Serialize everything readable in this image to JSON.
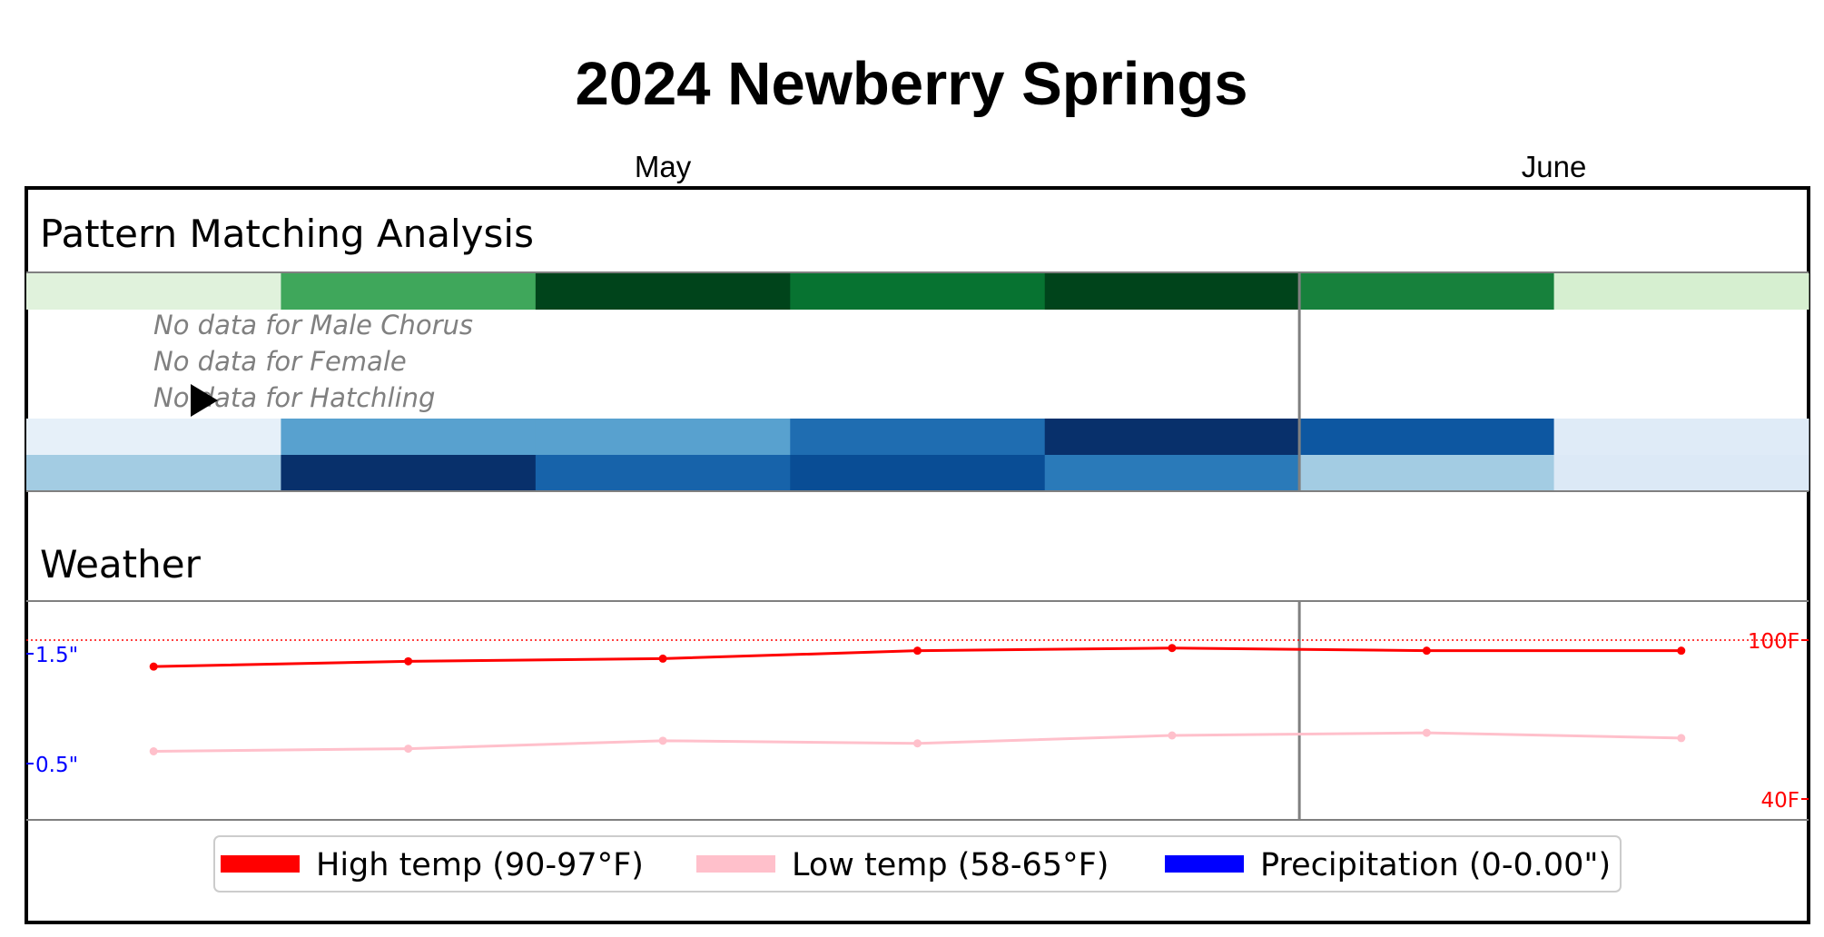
{
  "title": "2024 Newberry Springs",
  "months": [
    {
      "label": "May",
      "anchor_col": 2.5
    },
    {
      "label": "June",
      "anchor_col": 6.0
    }
  ],
  "pattern_section": {
    "title": "Pattern Matching Analysis",
    "num_columns": 7,
    "today_boundary_col": 5,
    "rows": [
      {
        "name": "row-1",
        "colors": [
          "#e0f2dc",
          "#3fa75b",
          "#00441b",
          "#077331",
          "#00441b",
          "#17813c",
          "#d6efd0"
        ]
      },
      {
        "name": "row-2",
        "colors": [
          null,
          null,
          null,
          null,
          null,
          null,
          null
        ]
      },
      {
        "name": "row-3",
        "colors": [
          null,
          null,
          null,
          null,
          null,
          null,
          null
        ]
      },
      {
        "name": "row-4",
        "colors": [
          null,
          null,
          null,
          null,
          null,
          null,
          null
        ]
      },
      {
        "name": "row-5",
        "colors": [
          "#e6f0f9",
          "#58a1cf",
          "#58a1cf",
          "#1f6db1",
          "#08306b",
          "#0d57a1",
          "#dfebf7"
        ]
      },
      {
        "name": "row-6",
        "colors": [
          "#a3cce3",
          "#08306b",
          "#1763aa",
          "#094d95",
          "#2a7ab9",
          "#a3cce3",
          "#dce9f6"
        ]
      }
    ],
    "no_data_messages": [
      "No data for Male Chorus",
      "No data for Female",
      "No data for Hatchling"
    ]
  },
  "weather_section": {
    "title": "Weather",
    "left_axis_labels": [
      "1.5\"",
      "0.5\""
    ],
    "right_axis_labels": [
      "100F",
      "40F"
    ]
  },
  "chart_data": {
    "type": "line",
    "title": "2024 Newberry Springs",
    "x": [
      0.5,
      1.5,
      2.5,
      3.5,
      4.5,
      5.5,
      6.5
    ],
    "series": [
      {
        "name": "High temp (90-97°F)",
        "color": "#ff0000",
        "values": [
          90,
          92,
          93,
          96,
          97,
          96,
          96
        ]
      },
      {
        "name": "Low temp (58-65°F)",
        "color": "#ffc0cb",
        "values": [
          58,
          59,
          62,
          61,
          64,
          65,
          63
        ]
      },
      {
        "name": "Precipitation (0-0.00\")",
        "color": "#0000ff",
        "values": [
          0,
          0,
          0,
          0,
          0,
          0,
          0
        ]
      }
    ],
    "temp_ylim": [
      40,
      100
    ],
    "temp_reference_line": 100,
    "precip_ylim": [
      0,
      1.5
    ],
    "legend_position": "bottom-center"
  },
  "legend": {
    "items": [
      {
        "label": "High temp (90-97°F)",
        "color": "#ff0000"
      },
      {
        "label": "Low temp (58-65°F)",
        "color": "#ffc0cb"
      },
      {
        "label": "Precipitation (0-0.00\")",
        "color": "#0000ff"
      }
    ]
  },
  "playhead_icon": "play-triangle"
}
